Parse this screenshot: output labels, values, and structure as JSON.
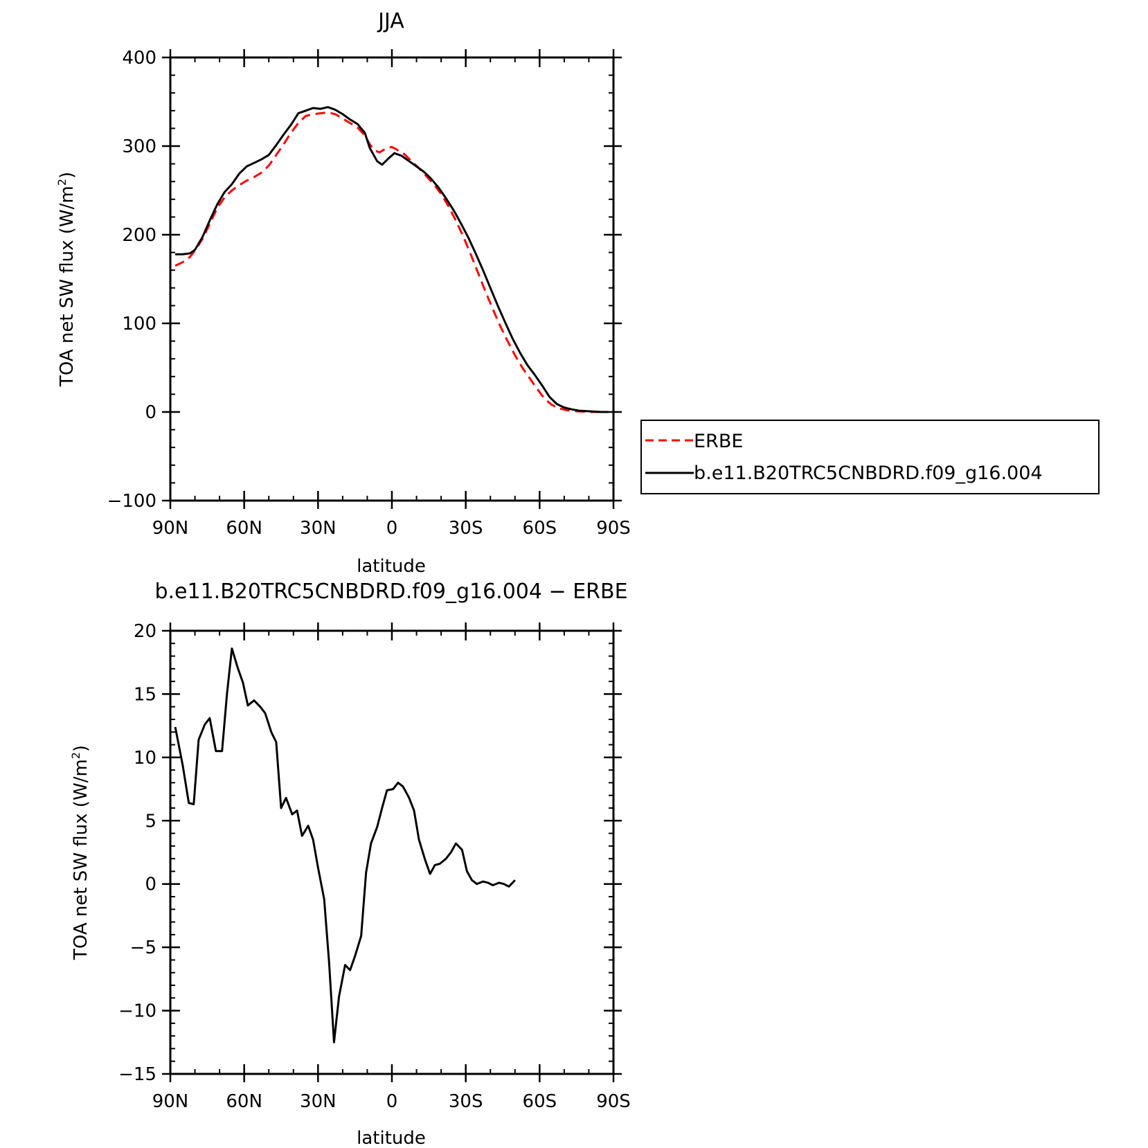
{
  "chart_data": [
    {
      "type": "line",
      "title": "JJA",
      "xlabel": "latitude",
      "ylabel_main": "TOA net SW flux (W/m",
      "ylabel_sup": "2",
      "ylabel_tail": ")",
      "x_direction": "north-to-south",
      "xlim": [
        90,
        -90
      ],
      "ylim": [
        -100,
        400
      ],
      "xticks": [
        {
          "value": 90,
          "label": "90N"
        },
        {
          "value": 60,
          "label": "60N"
        },
        {
          "value": 30,
          "label": "30N"
        },
        {
          "value": 0,
          "label": "0"
        },
        {
          "value": -30,
          "label": "30S"
        },
        {
          "value": -60,
          "label": "60S"
        },
        {
          "value": -90,
          "label": "90S"
        }
      ],
      "yticks": [
        {
          "value": 400,
          "label": "400"
        },
        {
          "value": 300,
          "label": "300"
        },
        {
          "value": 200,
          "label": "200"
        },
        {
          "value": 100,
          "label": "100"
        },
        {
          "value": 0,
          "label": "0"
        },
        {
          "value": -100,
          "label": "−100"
        }
      ],
      "grid": false,
      "legend": "outside-right",
      "series": [
        {
          "name": "ERBE",
          "color": "#ff0000",
          "style": "dashed",
          "points": [
            [
              88,
              165
            ],
            [
              85,
              169
            ],
            [
              82,
              175
            ],
            [
              80,
              182
            ],
            [
              77,
              195
            ],
            [
              74,
              212
            ],
            [
              71,
              230
            ],
            [
              68,
              242
            ],
            [
              65,
              250
            ],
            [
              62,
              256
            ],
            [
              59,
              261
            ],
            [
              56,
              265
            ],
            [
              53,
              270
            ],
            [
              50,
              278
            ],
            [
              47,
              290
            ],
            [
              44,
              302
            ],
            [
              41,
              315
            ],
            [
              38,
              326
            ],
            [
              35,
              334
            ],
            [
              32,
              336
            ],
            [
              29,
              337
            ],
            [
              26,
              338
            ],
            [
              23,
              336
            ],
            [
              20,
              331
            ],
            [
              17,
              326
            ],
            [
              14,
              321
            ],
            [
              11,
              312
            ],
            [
              9,
              302
            ],
            [
              7,
              295
            ],
            [
              5,
              293
            ],
            [
              2,
              298
            ],
            [
              0,
              299
            ],
            [
              -2,
              296
            ],
            [
              -5,
              291
            ],
            [
              -8,
              283
            ],
            [
              -11,
              275
            ],
            [
              -14,
              266
            ],
            [
              -17,
              257
            ],
            [
              -20,
              246
            ],
            [
              -23,
              232
            ],
            [
              -26,
              216
            ],
            [
              -29,
              198
            ],
            [
              -32,
              178
            ],
            [
              -35,
              157
            ],
            [
              -38,
              136
            ],
            [
              -41,
              116
            ],
            [
              -44,
              97
            ],
            [
              -47,
              80
            ],
            [
              -50,
              64
            ],
            [
              -53,
              50
            ],
            [
              -56,
              38
            ],
            [
              -59,
              26
            ],
            [
              -62,
              15
            ],
            [
              -65,
              8
            ],
            [
              -68,
              4
            ],
            [
              -71,
              2
            ],
            [
              -74,
              1
            ],
            [
              -77,
              0.5
            ],
            [
              -80,
              0
            ],
            [
              -83,
              0
            ],
            [
              -86,
              0
            ],
            [
              -88,
              0
            ]
          ]
        },
        {
          "name": "b.e11.B20TRC5CNBDRD.f09_g16.004",
          "color": "#000000",
          "style": "solid",
          "points": [
            [
              88,
              178
            ],
            [
              85,
              178
            ],
            [
              82,
              179
            ],
            [
              80,
              183
            ],
            [
              77,
              197
            ],
            [
              74,
              216
            ],
            [
              71,
              234
            ],
            [
              68,
              248
            ],
            [
              65,
              257
            ],
            [
              62,
              269
            ],
            [
              59,
              277
            ],
            [
              56,
              281
            ],
            [
              53,
              285
            ],
            [
              50,
              290
            ],
            [
              47,
              301
            ],
            [
              44,
              313
            ],
            [
              41,
              324
            ],
            [
              38,
              337
            ],
            [
              35,
              340
            ],
            [
              32,
              343
            ],
            [
              29,
              342
            ],
            [
              26,
              344
            ],
            [
              23,
              341
            ],
            [
              20,
              336
            ],
            [
              17,
              330
            ],
            [
              14,
              325
            ],
            [
              11,
              315
            ],
            [
              9,
              298
            ],
            [
              6,
              283
            ],
            [
              4,
              279
            ],
            [
              1,
              287
            ],
            [
              -1,
              292
            ],
            [
              -4,
              289
            ],
            [
              -7,
              283
            ],
            [
              -10,
              277
            ],
            [
              -13,
              271
            ],
            [
              -16,
              263
            ],
            [
              -19,
              253
            ],
            [
              -22,
              241
            ],
            [
              -25,
              228
            ],
            [
              -28,
              213
            ],
            [
              -31,
              197
            ],
            [
              -34,
              179
            ],
            [
              -37,
              160
            ],
            [
              -40,
              140
            ],
            [
              -43,
              120
            ],
            [
              -46,
              101
            ],
            [
              -49,
              83
            ],
            [
              -52,
              67
            ],
            [
              -55,
              53
            ],
            [
              -58,
              42
            ],
            [
              -61,
              30
            ],
            [
              -64,
              17
            ],
            [
              -67,
              9
            ],
            [
              -70,
              5
            ],
            [
              -73,
              3
            ],
            [
              -76,
              1.5
            ],
            [
              -79,
              1
            ],
            [
              -82,
              0.5
            ],
            [
              -85,
              0
            ],
            [
              -88,
              0
            ]
          ]
        }
      ]
    },
    {
      "type": "line",
      "title": "b.e11.B20TRC5CNBDRD.f09_g16.004 − ERBE",
      "xlabel": "latitude",
      "ylabel_main": "TOA net SW flux (W/m",
      "ylabel_sup": "2",
      "ylabel_tail": ")",
      "x_direction": "north-to-south",
      "xlim": [
        90,
        -90
      ],
      "ylim": [
        -15,
        20
      ],
      "xticks": [
        {
          "value": 90,
          "label": "90N"
        },
        {
          "value": 60,
          "label": "60N"
        },
        {
          "value": 30,
          "label": "30N"
        },
        {
          "value": 0,
          "label": "0"
        },
        {
          "value": -30,
          "label": "30S"
        },
        {
          "value": -60,
          "label": "60S"
        },
        {
          "value": -90,
          "label": "90S"
        }
      ],
      "yticks": [
        {
          "value": 20,
          "label": "20"
        },
        {
          "value": 15,
          "label": "15"
        },
        {
          "value": 10,
          "label": "10"
        },
        {
          "value": 5,
          "label": "5"
        },
        {
          "value": 0,
          "label": "0"
        },
        {
          "value": -5,
          "label": "−5"
        },
        {
          "value": -10,
          "label": "−10"
        },
        {
          "value": -15,
          "label": "−15"
        }
      ],
      "grid": false,
      "legend": "none",
      "series": [
        {
          "color": "#000000",
          "style": "solid",
          "points": [
            [
              88,
              12.4
            ],
            [
              85,
              9.4
            ],
            [
              82.5,
              6.4
            ],
            [
              80.5,
              6.3
            ],
            [
              78.5,
              11.4
            ],
            [
              76,
              12.6
            ],
            [
              74,
              13.1
            ],
            [
              71.5,
              10.5
            ],
            [
              69,
              10.5
            ],
            [
              67,
              15.0
            ],
            [
              65,
              18.6
            ],
            [
              62.5,
              17.0
            ],
            [
              60.5,
              15.9
            ],
            [
              58.5,
              14.1
            ],
            [
              56,
              14.5
            ],
            [
              53.5,
              14.0
            ],
            [
              51.5,
              13.5
            ],
            [
              49,
              12.0
            ],
            [
              47,
              11.2
            ],
            [
              45,
              6.0
            ],
            [
              43,
              6.8
            ],
            [
              40.5,
              5.5
            ],
            [
              38.5,
              5.8
            ],
            [
              36.5,
              3.8
            ],
            [
              34,
              4.6
            ],
            [
              32,
              3.5
            ],
            [
              30,
              1.3
            ],
            [
              27.5,
              -1.2
            ],
            [
              25.5,
              -6.2
            ],
            [
              23.5,
              -12.5
            ],
            [
              21.5,
              -8.9
            ],
            [
              19,
              -6.4
            ],
            [
              17,
              -6.8
            ],
            [
              15,
              -5.7
            ],
            [
              12.5,
              -4.1
            ],
            [
              10.5,
              0.9
            ],
            [
              8.5,
              3.2
            ],
            [
              6,
              4.5
            ],
            [
              4,
              6.0
            ],
            [
              2,
              7.4
            ],
            [
              -0.5,
              7.5
            ],
            [
              -2.5,
              8.0
            ],
            [
              -4.5,
              7.7
            ],
            [
              -7,
              6.8
            ],
            [
              -9,
              5.8
            ],
            [
              -11,
              3.5
            ],
            [
              -13.5,
              1.9
            ],
            [
              -15.5,
              0.8
            ],
            [
              -17.5,
              1.5
            ],
            [
              -19.5,
              1.6
            ],
            [
              -22,
              2.0
            ],
            [
              -24,
              2.5
            ],
            [
              -26,
              3.2
            ],
            [
              -28.5,
              2.7
            ],
            [
              -30.5,
              1.0
            ],
            [
              -32.5,
              0.3
            ],
            [
              -34.5,
              0.0
            ],
            [
              -37,
              0.2
            ],
            [
              -39,
              0.1
            ],
            [
              -41,
              -0.1
            ],
            [
              -43.5,
              0.1
            ],
            [
              -45.5,
              0.0
            ],
            [
              -47.5,
              -0.2
            ],
            [
              -50,
              0.3
            ]
          ]
        }
      ]
    }
  ]
}
